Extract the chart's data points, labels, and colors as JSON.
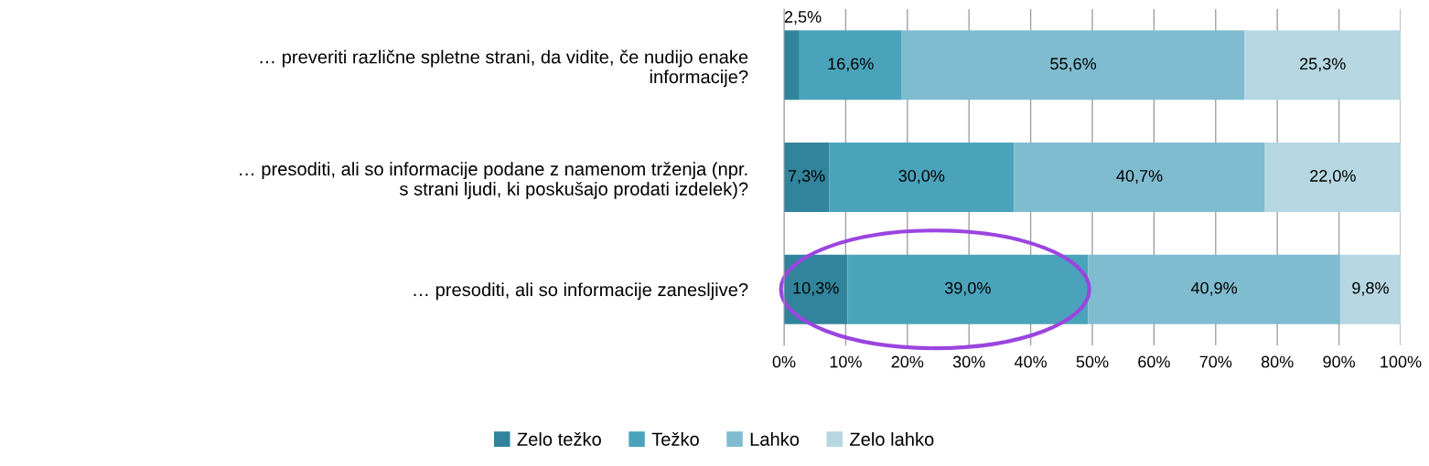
{
  "chart_data": {
    "type": "bar",
    "orientation": "horizontal",
    "stacked": true,
    "categories": [
      "… preveriti različne spletne strani, da vidite, če nudijo enake\ninformacije?",
      "… presoditi, ali so informacije podane z namenom trženja (npr.\ns strani ljudi, ki poskušajo prodati izdelek)?",
      "… presoditi, ali so informacije zanesljive?"
    ],
    "series": [
      {
        "name": "Zelo težko",
        "color": "#31849b",
        "values": [
          2.5,
          7.3,
          10.3
        ],
        "value_labels": [
          "2,5%",
          "7,3%",
          "10,3%"
        ]
      },
      {
        "name": "Težko",
        "color": "#4aa3bb",
        "values": [
          16.6,
          30.0,
          39.0
        ],
        "value_labels": [
          "16,6%",
          "30,0%",
          "39,0%"
        ]
      },
      {
        "name": "Lahko",
        "color": "#7fbcd0",
        "values": [
          55.6,
          40.7,
          40.9
        ],
        "value_labels": [
          "55,6%",
          "40,7%",
          "40,9%"
        ]
      },
      {
        "name": "Zelo lahko",
        "color": "#b6d7e1",
        "values": [
          25.3,
          22.0,
          9.8
        ],
        "value_labels": [
          "25,3%",
          "22,0%",
          "9,8%"
        ]
      }
    ],
    "xlim": [
      0,
      100
    ],
    "xticks": [
      {
        "value": 0,
        "label": "0%"
      },
      {
        "value": 10,
        "label": "10%"
      },
      {
        "value": 20,
        "label": "20%"
      },
      {
        "value": 30,
        "label": "30%"
      },
      {
        "value": 40,
        "label": "40%"
      },
      {
        "value": 50,
        "label": "50%"
      },
      {
        "value": 60,
        "label": "60%"
      },
      {
        "value": 70,
        "label": "70%"
      },
      {
        "value": 80,
        "label": "80%"
      },
      {
        "value": 90,
        "label": "90%"
      },
      {
        "value": 100,
        "label": "100%"
      }
    ],
    "grid": "x",
    "legend": "bottom"
  }
}
